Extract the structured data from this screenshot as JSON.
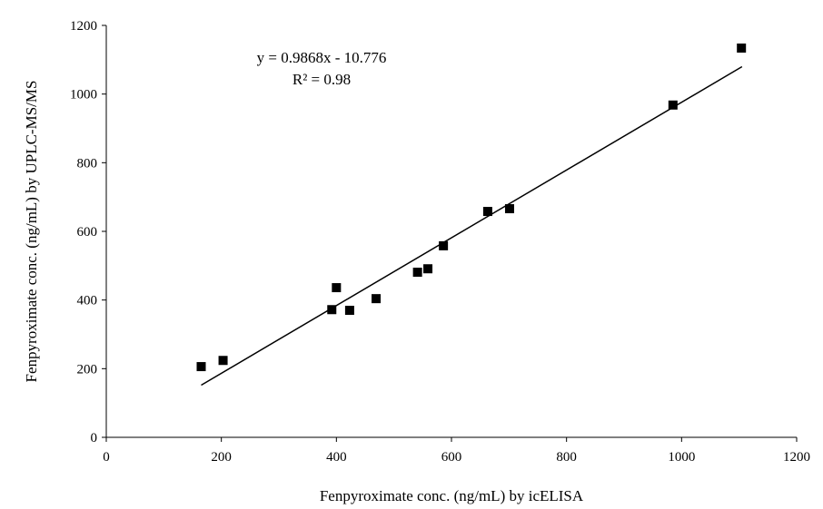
{
  "chart_data": {
    "type": "scatter",
    "xlabel": "Fenpyroximate conc. (ng/mL) by icELISA",
    "ylabel": "Fenpyroximate conc. (ng/mL) by UPLC-MS/MS",
    "xlim": [
      0,
      1200
    ],
    "ylim": [
      0,
      1200
    ],
    "xticks": [
      "0",
      "200",
      "400",
      "600",
      "800",
      "1000",
      "1200"
    ],
    "yticks": [
      "0",
      "200",
      "400",
      "600",
      "800",
      "1000",
      "1200"
    ],
    "grid": false,
    "legend": "none",
    "annotations": {
      "equation": "y = 0.9868x - 10.776",
      "r_squared": "R² = 0.98"
    },
    "trendline": {
      "slope": 0.9868,
      "intercept": -10.776,
      "x_range": [
        165,
        1105
      ]
    },
    "points": [
      {
        "x": 165,
        "y": 206
      },
      {
        "x": 203,
        "y": 224
      },
      {
        "x": 392,
        "y": 372
      },
      {
        "x": 400,
        "y": 436
      },
      {
        "x": 423,
        "y": 370
      },
      {
        "x": 469,
        "y": 404
      },
      {
        "x": 541,
        "y": 481
      },
      {
        "x": 559,
        "y": 491
      },
      {
        "x": 586,
        "y": 558
      },
      {
        "x": 663,
        "y": 658
      },
      {
        "x": 701,
        "y": 666
      },
      {
        "x": 985,
        "y": 968
      },
      {
        "x": 1104,
        "y": 1134
      }
    ],
    "colors": {
      "marker": "#000000",
      "line": "#000000",
      "axis": "#000000"
    }
  }
}
